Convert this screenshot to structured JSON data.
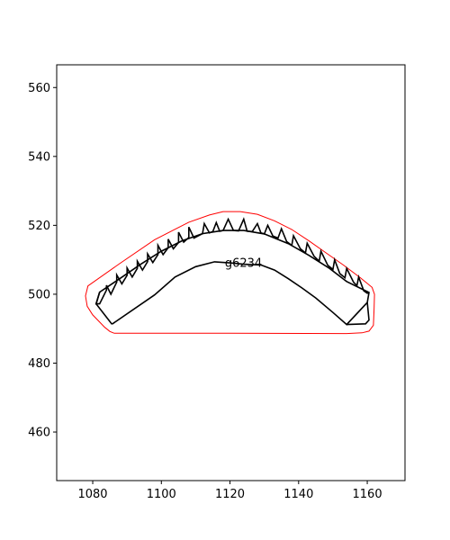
{
  "chart_data": {
    "type": "line",
    "title": "",
    "xlabel": "",
    "ylabel": "",
    "xlim": [
      1069.5,
      1171.0
    ],
    "ylim": [
      445.9,
      566.6
    ],
    "x_ticks": [
      1080,
      1100,
      1120,
      1140,
      1160
    ],
    "y_ticks": [
      460,
      480,
      500,
      520,
      540,
      560
    ],
    "grid": false,
    "legend": "none",
    "annotations": [
      {
        "text": "g6234",
        "x": 1118.5,
        "y": 507.9
      }
    ],
    "series": [
      {
        "color": "#ff0000",
        "points": [
          [
            1086.2,
            488.7
          ],
          [
            1085.0,
            489.2
          ],
          [
            1083.5,
            490.4
          ],
          [
            1080.0,
            494.0
          ],
          [
            1078.4,
            496.5
          ],
          [
            1077.9,
            499.5
          ],
          [
            1078.6,
            502.4
          ],
          [
            1088.0,
            509.0
          ],
          [
            1098.0,
            515.8
          ],
          [
            1108.0,
            520.9
          ],
          [
            1114.0,
            523.0
          ],
          [
            1118.0,
            524.0
          ],
          [
            1123.0,
            524.0
          ],
          [
            1128.0,
            523.2
          ],
          [
            1133.0,
            521.3
          ],
          [
            1138.0,
            518.8
          ],
          [
            1143.0,
            515.5
          ],
          [
            1148.0,
            512.0
          ],
          [
            1153.0,
            508.5
          ],
          [
            1158.0,
            504.8
          ],
          [
            1161.4,
            502.0
          ],
          [
            1162.1,
            500.0
          ],
          [
            1162.0,
            496.0
          ],
          [
            1161.8,
            491.0
          ],
          [
            1160.5,
            489.3
          ],
          [
            1158.5,
            488.8
          ],
          [
            1154.0,
            488.6
          ],
          [
            1120.0,
            488.7
          ],
          [
            1086.2,
            488.7
          ]
        ]
      },
      {
        "color": "#000000",
        "points": [
          [
            1085.6,
            491.3
          ],
          [
            1098.0,
            499.8
          ],
          [
            1104.0,
            505.0
          ],
          [
            1110.0,
            508.0
          ],
          [
            1115.5,
            509.4
          ],
          [
            1120.0,
            509.1
          ],
          [
            1124.0,
            508.7
          ],
          [
            1129.0,
            508.5
          ],
          [
            1133.0,
            507.0
          ],
          [
            1137.0,
            504.5
          ],
          [
            1141.0,
            501.8
          ],
          [
            1145.0,
            498.9
          ],
          [
            1150.0,
            494.7
          ],
          [
            1154.0,
            491.2
          ],
          [
            1160.0,
            497.6
          ],
          [
            1160.5,
            500.5
          ],
          [
            1154.0,
            503.7
          ],
          [
            1149.0,
            507.5
          ],
          [
            1143.0,
            511.3
          ],
          [
            1137.0,
            514.7
          ],
          [
            1130.0,
            517.5
          ],
          [
            1124.0,
            518.5
          ],
          [
            1118.0,
            518.5
          ],
          [
            1112.0,
            517.6
          ],
          [
            1106.0,
            515.5
          ],
          [
            1100.0,
            512.5
          ],
          [
            1094.0,
            508.7
          ],
          [
            1088.0,
            504.6
          ],
          [
            1082.0,
            500.6
          ],
          [
            1081.0,
            497.2
          ],
          [
            1085.6,
            491.3
          ]
        ]
      },
      {
        "color": "#000000",
        "points": [
          [
            1082.0,
            500.6
          ],
          [
            1081.0,
            497.2
          ],
          [
            1082.0,
            497.2
          ],
          [
            1084.0,
            501.2
          ],
          [
            1084.0,
            502.6
          ],
          [
            1085.3,
            500.0
          ],
          [
            1087.0,
            503.5
          ],
          [
            1087.0,
            505.6
          ],
          [
            1088.5,
            503.0
          ],
          [
            1090.0,
            505.5
          ],
          [
            1090.0,
            507.6
          ],
          [
            1091.5,
            505.0
          ],
          [
            1093.0,
            507.5
          ],
          [
            1093.0,
            509.6
          ],
          [
            1094.5,
            507.0
          ],
          [
            1096.0,
            509.5
          ],
          [
            1096.0,
            511.7
          ],
          [
            1097.5,
            509.2
          ],
          [
            1099.0,
            511.5
          ],
          [
            1099.0,
            514.2
          ],
          [
            1100.5,
            511.5
          ],
          [
            1102.0,
            513.5
          ],
          [
            1102.0,
            516.0
          ],
          [
            1103.5,
            513.2
          ],
          [
            1105.0,
            515.0
          ],
          [
            1105.0,
            518.0
          ],
          [
            1106.5,
            515.1
          ],
          [
            1108.0,
            516.5
          ],
          [
            1108.0,
            519.5
          ],
          [
            1109.5,
            516.3
          ],
          [
            1112.0,
            517.6
          ],
          [
            1112.5,
            520.5
          ],
          [
            1114.0,
            517.8
          ],
          [
            1115.0,
            518.2
          ],
          [
            1116.0,
            520.8
          ],
          [
            1117.0,
            518.3
          ],
          [
            1118.0,
            518.5
          ],
          [
            1119.5,
            521.8
          ],
          [
            1121.0,
            518.5
          ],
          [
            1122.5,
            518.4
          ],
          [
            1124.0,
            521.8
          ],
          [
            1125.0,
            518.3
          ],
          [
            1126.5,
            518.2
          ],
          [
            1128.0,
            520.5
          ],
          [
            1129.0,
            517.8
          ],
          [
            1130.0,
            517.5
          ],
          [
            1131.0,
            520.0
          ],
          [
            1132.5,
            516.9
          ],
          [
            1134.0,
            516.3
          ],
          [
            1135.0,
            519.0
          ],
          [
            1136.5,
            515.3
          ],
          [
            1138.0,
            514.2
          ],
          [
            1138.5,
            517.0
          ],
          [
            1140.5,
            513.2
          ],
          [
            1142.0,
            512.0
          ],
          [
            1142.5,
            514.8
          ],
          [
            1144.5,
            511.0
          ],
          [
            1146.0,
            509.6
          ],
          [
            1146.5,
            512.5
          ],
          [
            1148.5,
            508.4
          ],
          [
            1150.0,
            507.2
          ],
          [
            1150.5,
            510.0
          ],
          [
            1152.0,
            506.0
          ],
          [
            1153.5,
            504.8
          ],
          [
            1154.0,
            507.5
          ],
          [
            1156.0,
            503.5
          ],
          [
            1157.0,
            502.5
          ],
          [
            1157.5,
            505.0
          ],
          [
            1159.0,
            501.0
          ],
          [
            1160.0,
            500.3
          ],
          [
            1160.5,
            500.5
          ]
        ]
      },
      {
        "color": "#000000",
        "points": [
          [
            1154.0,
            491.2
          ],
          [
            1159.5,
            491.4
          ],
          [
            1160.5,
            492.5
          ],
          [
            1160.0,
            497.6
          ]
        ]
      }
    ]
  }
}
